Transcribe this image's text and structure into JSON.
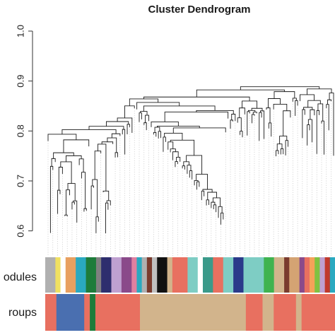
{
  "chart_data": {
    "type": "dendrogram",
    "title": "Cluster Dendrogram",
    "ylabel": "",
    "ylim": [
      0.55,
      1.0
    ],
    "y_ticks": [
      0.6,
      0.7,
      0.8,
      0.9,
      1.0
    ],
    "y_tick_labels": [
      "0.6",
      "0.7",
      "0.8",
      "0.9",
      "1.0"
    ],
    "leaf_count": 120,
    "color_rows": [
      {
        "label": "odules",
        "segments": [
          {
            "color": "#b0b0b0",
            "w": 2
          },
          {
            "color": "#f0e060",
            "w": 1
          },
          {
            "color": "#ffffff",
            "w": 1
          },
          {
            "color": "#e8a060",
            "w": 2
          },
          {
            "color": "#2aa9c0",
            "w": 2
          },
          {
            "color": "#1e7c3a",
            "w": 2
          },
          {
            "color": "#808080",
            "w": 1
          },
          {
            "color": "#2e2e6e",
            "w": 2
          },
          {
            "color": "#bfa0d0",
            "w": 2
          },
          {
            "color": "#8a4a8a",
            "w": 2
          },
          {
            "color": "#e080a0",
            "w": 1
          },
          {
            "color": "#2aa9c0",
            "w": 1
          },
          {
            "color": "#b0b0b0",
            "w": 1
          },
          {
            "color": "#7a3b2e",
            "w": 1
          },
          {
            "color": "#c0c0c0",
            "w": 1
          },
          {
            "color": "#111111",
            "w": 2
          },
          {
            "color": "#d2b48c",
            "w": 1
          },
          {
            "color": "#e87060",
            "w": 3
          },
          {
            "color": "#7ecdc4",
            "w": 2
          },
          {
            "color": "#ffffff",
            "w": 1
          },
          {
            "color": "#3a9a8a",
            "w": 2
          },
          {
            "color": "#e87060",
            "w": 2
          },
          {
            "color": "#7ecdc4",
            "w": 2
          },
          {
            "color": "#2a3a8a",
            "w": 2
          },
          {
            "color": "#7ecdc4",
            "w": 4
          },
          {
            "color": "#3fb34f",
            "w": 2
          },
          {
            "color": "#d2b48c",
            "w": 2
          },
          {
            "color": "#7a3b2e",
            "w": 1
          },
          {
            "color": "#d4a373",
            "w": 2
          },
          {
            "color": "#8a4a8a",
            "w": 1
          },
          {
            "color": "#e87060",
            "w": 1
          },
          {
            "color": "#f4a259",
            "w": 1
          },
          {
            "color": "#7fc241",
            "w": 1
          },
          {
            "color": "#bfa0d0",
            "w": 1
          },
          {
            "color": "#c0392b",
            "w": 1
          },
          {
            "color": "#2aa9c0",
            "w": 1
          }
        ]
      },
      {
        "label": "roups",
        "segments": [
          {
            "color": "#e87060",
            "w": 2
          },
          {
            "color": "#4a6fb0",
            "w": 5
          },
          {
            "color": "#e87060",
            "w": 1
          },
          {
            "color": "#1e7c3a",
            "w": 1
          },
          {
            "color": "#e87060",
            "w": 8
          },
          {
            "color": "#d2b48c",
            "w": 19
          },
          {
            "color": "#e87060",
            "w": 3
          },
          {
            "color": "#d2b48c",
            "w": 2
          },
          {
            "color": "#e87060",
            "w": 4
          },
          {
            "color": "#d2b48c",
            "w": 1
          },
          {
            "color": "#e87060",
            "w": 6
          }
        ]
      }
    ]
  }
}
